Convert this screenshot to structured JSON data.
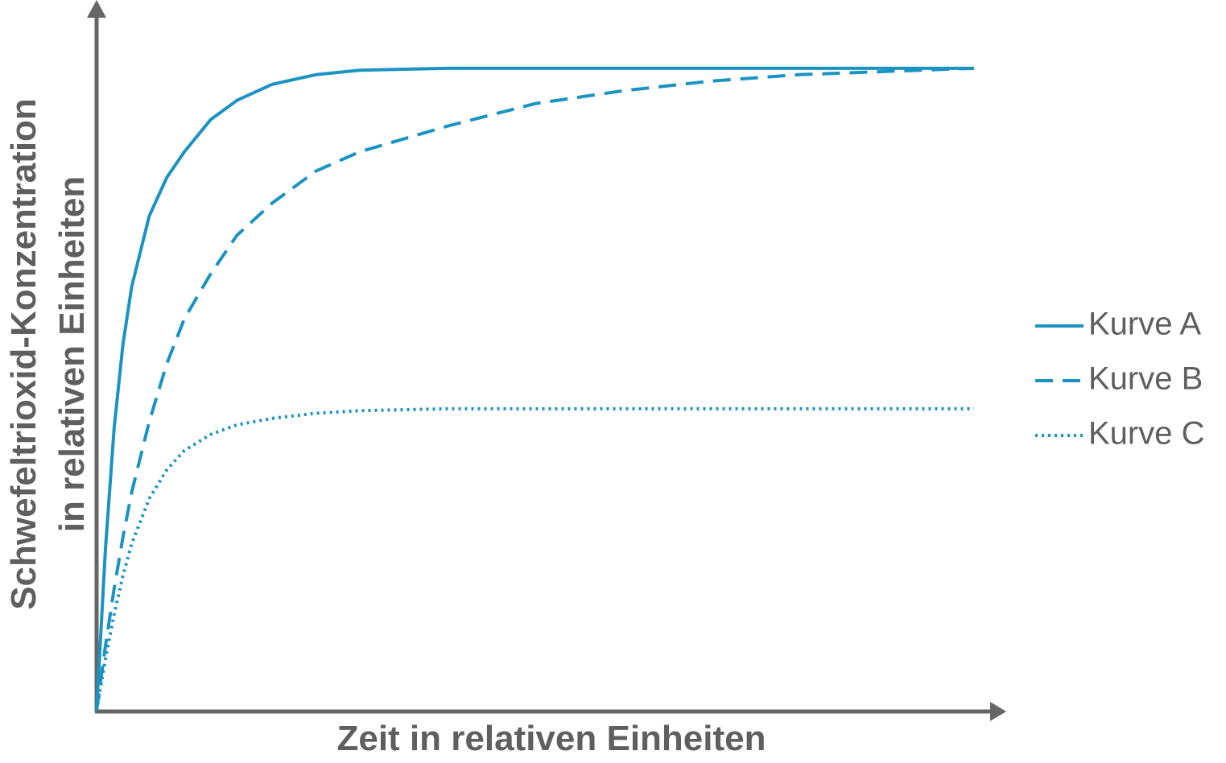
{
  "chart_data": {
    "type": "line",
    "x_label": "Zeit in relativen Einheiten",
    "y_label": [
      "Schwefeltrioxid-Konzentration",
      "in relativen Einheiten"
    ],
    "x": [
      0,
      1,
      2,
      3,
      4,
      6,
      8,
      10,
      13,
      16,
      20,
      25,
      30,
      40,
      50,
      60,
      70,
      80,
      90,
      100
    ],
    "xlim": [
      0,
      103.5
    ],
    "ylim": [
      0,
      110
    ],
    "series": [
      {
        "name": "Kurve A",
        "color": "#1b93c2",
        "dash": "solid",
        "values": [
          0,
          25,
          44,
          57,
          66,
          77,
          83,
          87,
          92,
          95,
          97.5,
          99,
          99.7,
          100,
          100,
          100,
          100,
          100,
          100,
          100
        ]
      },
      {
        "name": "Kurve B",
        "color": "#1b93c2",
        "dash": "dashed",
        "values": [
          0,
          10,
          19,
          27,
          34,
          45,
          54,
          61,
          68,
          74,
          79,
          84,
          87,
          91,
          94.5,
          96.5,
          98,
          99,
          99.5,
          100
        ]
      },
      {
        "name": "Kurve C",
        "color": "#1b93c2",
        "dash": "dotted",
        "values": [
          0,
          8,
          15,
          21,
          26,
          33,
          37.5,
          40.5,
          43,
          44.5,
          45.5,
          46.3,
          46.7,
          47,
          47,
          47,
          47,
          47,
          47,
          47
        ]
      }
    ]
  }
}
